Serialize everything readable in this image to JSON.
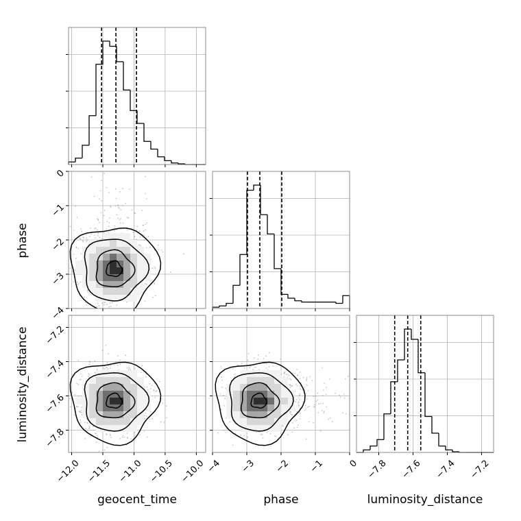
{
  "chart_data": {
    "type": "corner",
    "parameters": [
      "geocent_time",
      "phase",
      "luminosity_distance"
    ],
    "grid": true,
    "ranges": {
      "geocent_time": [
        -12.05,
        -9.85
      ],
      "phase": [
        -4.0,
        0.0
      ],
      "luminosity_distance": [
        -7.93,
        -7.13
      ]
    },
    "ticks": {
      "geocent_time": {
        "values": [
          -12.0,
          -11.5,
          -11.0,
          -10.5,
          -10.0
        ],
        "labels": [
          "−12.0",
          "−11.5",
          "−11.0",
          "−10.5",
          "−10.0"
        ]
      },
      "phase": {
        "values": [
          -4,
          -3,
          -2,
          -1,
          0
        ],
        "labels": [
          "−4",
          "−3",
          "−2",
          "−1",
          "0"
        ]
      },
      "luminosity_distance": {
        "values": [
          -7.8,
          -7.6,
          -7.4,
          -7.2
        ],
        "labels": [
          "−7.8",
          "−7.6",
          "−7.4",
          "−7.2"
        ]
      }
    },
    "quantiles": {
      "geocent_time": [
        -11.52,
        -11.29,
        -10.96
      ],
      "phase": [
        -2.98,
        -2.62,
        -1.98
      ],
      "luminosity_distance": [
        -7.707,
        -7.631,
        -7.555
      ]
    },
    "histograms": {
      "geocent_time": {
        "edges": [
          -12.05,
          -11.94,
          -11.83,
          -11.72,
          -11.61,
          -11.5,
          -11.39,
          -11.28,
          -11.17,
          -11.06,
          -10.95,
          -10.84,
          -10.73,
          -10.62,
          -10.51,
          -10.4,
          -10.29,
          -10.18,
          -10.07,
          -9.96,
          -9.85
        ],
        "density": [
          0.02,
          0.05,
          0.15,
          0.38,
          0.78,
          0.96,
          0.92,
          0.8,
          0.58,
          0.42,
          0.32,
          0.18,
          0.12,
          0.06,
          0.03,
          0.012,
          0.005,
          0.0,
          0.0,
          0.0
        ]
      },
      "phase": {
        "edges": [
          -4.0,
          -3.8,
          -3.6,
          -3.4,
          -3.2,
          -3.0,
          -2.8,
          -2.6,
          -2.4,
          -2.2,
          -2.0,
          -1.8,
          -1.6,
          -1.4,
          -1.2,
          -1.0,
          -0.8,
          -0.6,
          -0.4,
          -0.2,
          0.0
        ],
        "density": [
          0.01,
          0.02,
          0.04,
          0.18,
          0.42,
          0.92,
          0.96,
          0.73,
          0.58,
          0.31,
          0.11,
          0.08,
          0.06,
          0.05,
          0.05,
          0.05,
          0.05,
          0.05,
          0.04,
          0.1
        ]
      },
      "luminosity_distance": {
        "edges": [
          -7.93,
          -7.89,
          -7.85,
          -7.81,
          -7.77,
          -7.73,
          -7.69,
          -7.65,
          -7.61,
          -7.57,
          -7.53,
          -7.49,
          -7.45,
          -7.41,
          -7.37,
          -7.33,
          -7.29,
          -7.25,
          -7.21,
          -7.17,
          -7.13
        ],
        "density": [
          0.0,
          0.02,
          0.05,
          0.1,
          0.3,
          0.55,
          0.72,
          0.96,
          0.88,
          0.62,
          0.28,
          0.15,
          0.05,
          0.02,
          0.005,
          0.0,
          0.0,
          0.0,
          0.0,
          0.0
        ]
      }
    },
    "panels_2d": [
      {
        "x": "geocent_time",
        "y": "phase",
        "peak": [
          -11.32,
          -2.85
        ],
        "sigma": [
          0.25,
          0.45
        ],
        "contour_radii": [
          0.5,
          1.2,
          2.0,
          2.8
        ]
      },
      {
        "x": "geocent_time",
        "y": "luminosity_distance",
        "peak": [
          -11.32,
          -7.63
        ],
        "sigma": [
          0.25,
          0.085
        ],
        "contour_radii": [
          0.5,
          1.2,
          2.0,
          2.8
        ]
      },
      {
        "x": "phase",
        "y": "luminosity_distance",
        "peak": [
          -2.65,
          -7.63
        ],
        "sigma": [
          0.45,
          0.085
        ],
        "contour_radii": [
          0.5,
          1.2,
          2.0,
          2.8
        ]
      }
    ],
    "xlabels": [
      "geocent_time",
      "phase",
      "luminosity_distance"
    ],
    "ylabels": [
      "",
      "phase",
      "luminosity_distance"
    ]
  }
}
